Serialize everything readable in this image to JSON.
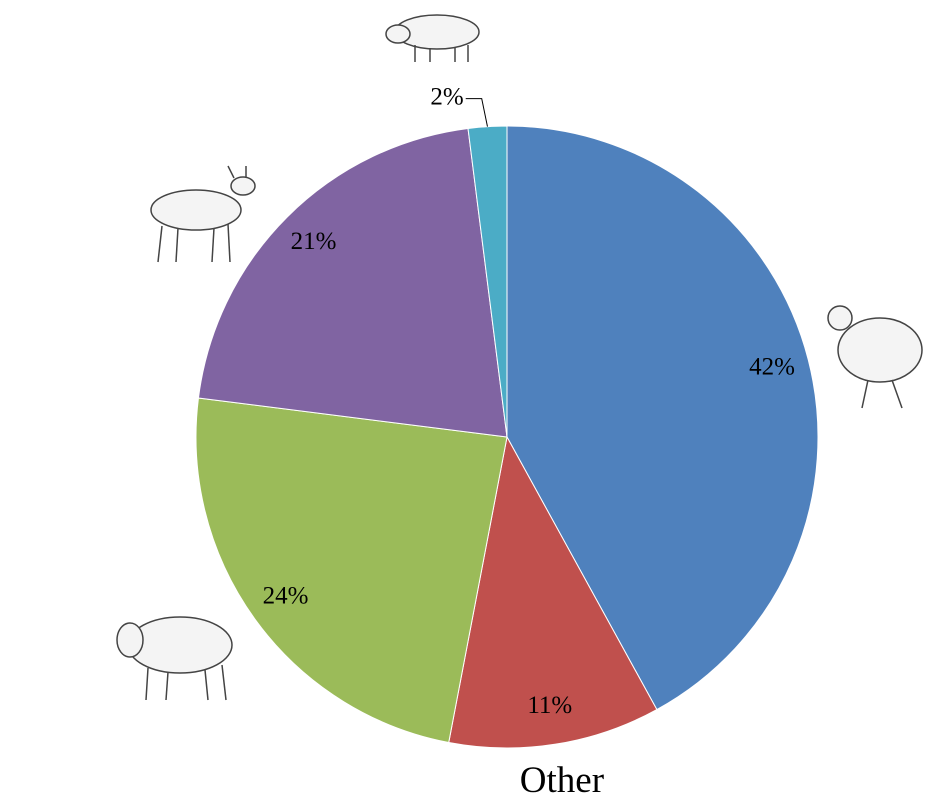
{
  "chart_data": {
    "type": "pie",
    "categories": [
      null,
      "Other",
      null,
      null,
      null
    ],
    "values": [
      42,
      11,
      24,
      21,
      2
    ],
    "value_labels": [
      "42%",
      "11%",
      "24%",
      "21%",
      "2%"
    ],
    "colors": [
      "#4f81bd",
      "#c0504d",
      "#9bbb59",
      "#8064a2",
      "#4bacc6"
    ]
  }
}
